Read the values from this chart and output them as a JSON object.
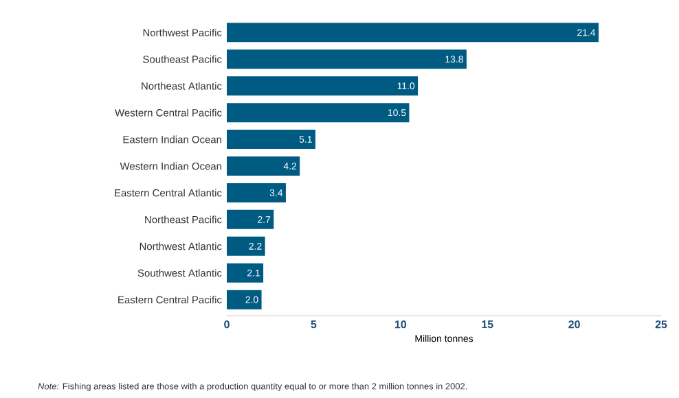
{
  "chart_data": {
    "type": "bar",
    "orientation": "horizontal",
    "categories": [
      "Northwest Pacific",
      "Southeast Pacific",
      "Northeast Atlantic",
      "Western Central Pacific",
      "Eastern Indian Ocean",
      "Western Indian Ocean",
      "Eastern Central Atlantic",
      "Northeast Pacific",
      "Northwest Atlantic",
      "Southwest Atlantic",
      "Eastern Central Pacific"
    ],
    "values": [
      21.4,
      13.8,
      11.0,
      10.5,
      5.1,
      4.2,
      3.4,
      2.7,
      2.2,
      2.1,
      2.0
    ],
    "value_labels": [
      "21.4",
      "13.8",
      "11.0",
      "10.5",
      "5.1",
      "4.2",
      "3.4",
      "2.7",
      "2.2",
      "2.1",
      "2.0"
    ],
    "color": "#005b82",
    "xlim": [
      0,
      25
    ],
    "xticks": [
      0,
      5,
      10,
      15,
      20,
      25
    ],
    "xlabel": "Million tonnes",
    "grid": false,
    "annotations": [
      "*Note:* Fishing areas listed are those with a production quantity equal to or more than 2 million tonnes in 2002."
    ]
  }
}
